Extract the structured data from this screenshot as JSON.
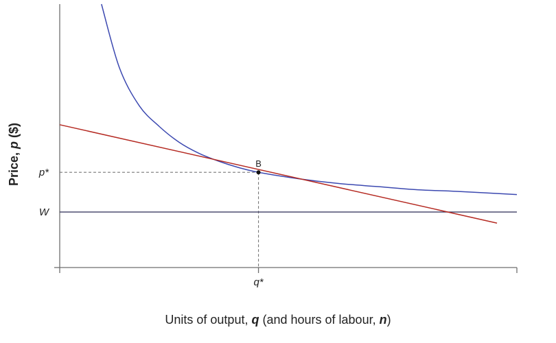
{
  "chart_data": {
    "type": "line",
    "xlabel_parts": [
      "Units of output, ",
      "q",
      " (and hours of labour, ",
      "n",
      ")"
    ],
    "ylabel_parts": [
      "Price, ",
      "p",
      " ($)"
    ],
    "y_ticks": [
      {
        "label": "p*",
        "value": 1.0
      },
      {
        "label": "W",
        "value": 0.75
      }
    ],
    "x_ticks": [
      {
        "label": "q*",
        "value": 1.0
      }
    ],
    "xlim": [
      0.0,
      2.3
    ],
    "ylim": [
      0.4,
      2.06
    ],
    "point": {
      "label": "B",
      "x": 1.0,
      "y": 1.0
    },
    "series": [
      {
        "kind": "curve",
        "color": "#3b48b0",
        "points": [
          [
            0.21,
            2.06
          ],
          [
            0.3,
            1.66
          ],
          [
            0.4,
            1.42
          ],
          [
            0.5,
            1.29
          ],
          [
            0.6,
            1.19
          ],
          [
            0.7,
            1.12
          ],
          [
            0.8,
            1.07
          ],
          [
            0.9,
            1.03
          ],
          [
            1.0,
            1.0
          ],
          [
            1.2,
            0.96
          ],
          [
            1.4,
            0.93
          ],
          [
            1.6,
            0.91
          ],
          [
            1.8,
            0.89
          ],
          [
            2.0,
            0.88
          ],
          [
            2.3,
            0.86
          ]
        ]
      },
      {
        "kind": "line",
        "color": "#b52a22",
        "points": [
          [
            0.0,
            1.3
          ],
          [
            2.2,
            0.68
          ]
        ]
      }
    ]
  }
}
